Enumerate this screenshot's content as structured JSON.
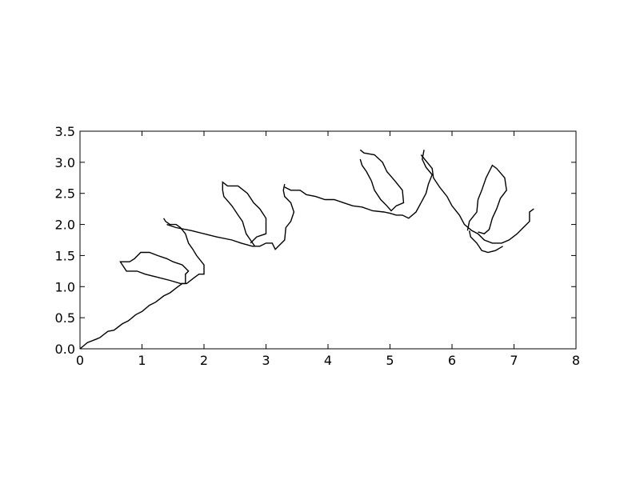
{
  "chart_data": {
    "type": "line",
    "title": "",
    "xlabel": "",
    "ylabel": "",
    "xlim": [
      0,
      8
    ],
    "ylim": [
      0,
      3.5
    ],
    "x_ticks": [
      "0",
      "1",
      "2",
      "3",
      "4",
      "5",
      "6",
      "7",
      "8"
    ],
    "y_ticks": [
      "0.0",
      "0.5",
      "1.0",
      "1.5",
      "2.0",
      "2.5",
      "3.0",
      "3.5"
    ],
    "grid": false,
    "line_color": "#000000",
    "series": [
      {
        "points": [
          [
            0.0,
            0.0
          ],
          [
            0.12,
            0.1
          ],
          [
            0.25,
            0.15
          ],
          [
            0.32,
            0.18
          ],
          [
            0.45,
            0.28
          ],
          [
            0.55,
            0.3
          ],
          [
            0.68,
            0.4
          ],
          [
            0.78,
            0.45
          ],
          [
            0.9,
            0.55
          ],
          [
            1.0,
            0.6
          ],
          [
            1.12,
            0.7
          ],
          [
            1.22,
            0.75
          ],
          [
            1.35,
            0.85
          ],
          [
            1.45,
            0.9
          ],
          [
            1.58,
            1.0
          ],
          [
            1.65,
            1.05
          ],
          [
            1.72,
            1.05
          ],
          [
            1.85,
            1.15
          ],
          [
            1.92,
            1.2
          ],
          [
            2.0,
            1.2
          ],
          [
            2.0,
            1.35
          ],
          [
            1.88,
            1.5
          ],
          [
            1.82,
            1.6
          ],
          [
            1.75,
            1.7
          ],
          [
            1.7,
            1.85
          ],
          [
            1.62,
            1.95
          ],
          [
            1.55,
            2.0
          ],
          [
            1.45,
            2.0
          ],
          [
            1.38,
            2.05
          ],
          [
            1.35,
            2.1
          ]
        ]
      },
      {
        "points": [
          [
            1.7,
            1.05
          ],
          [
            1.7,
            1.2
          ],
          [
            1.75,
            1.25
          ],
          [
            1.65,
            1.35
          ],
          [
            1.5,
            1.4
          ],
          [
            1.4,
            1.45
          ],
          [
            1.25,
            1.5
          ],
          [
            1.12,
            1.55
          ],
          [
            0.98,
            1.55
          ],
          [
            0.88,
            1.45
          ],
          [
            0.8,
            1.4
          ],
          [
            0.65,
            1.4
          ],
          [
            0.75,
            1.25
          ],
          [
            0.92,
            1.25
          ],
          [
            1.05,
            1.2
          ],
          [
            1.25,
            1.15
          ],
          [
            1.45,
            1.1
          ],
          [
            1.62,
            1.05
          ],
          [
            1.72,
            1.05
          ]
        ]
      },
      {
        "points": [
          [
            1.4,
            2.0
          ],
          [
            1.55,
            1.95
          ],
          [
            1.8,
            1.9
          ],
          [
            2.0,
            1.85
          ],
          [
            2.2,
            1.8
          ],
          [
            2.45,
            1.75
          ],
          [
            2.6,
            1.7
          ],
          [
            2.78,
            1.65
          ],
          [
            2.9,
            1.65
          ],
          [
            3.0,
            1.7
          ],
          [
            3.1,
            1.7
          ],
          [
            3.15,
            1.6
          ],
          [
            3.2,
            1.65
          ],
          [
            3.3,
            1.75
          ],
          [
            3.32,
            1.95
          ],
          [
            3.4,
            2.05
          ],
          [
            3.45,
            2.2
          ],
          [
            3.4,
            2.35
          ],
          [
            3.3,
            2.45
          ],
          [
            3.28,
            2.55
          ],
          [
            3.3,
            2.65
          ]
        ]
      },
      {
        "points": [
          [
            2.82,
            1.65
          ],
          [
            2.75,
            1.75
          ],
          [
            2.68,
            1.85
          ],
          [
            2.62,
            2.05
          ],
          [
            2.55,
            2.15
          ],
          [
            2.45,
            2.3
          ],
          [
            2.32,
            2.45
          ],
          [
            2.3,
            2.55
          ],
          [
            2.3,
            2.68
          ],
          [
            2.38,
            2.62
          ],
          [
            2.55,
            2.62
          ],
          [
            2.7,
            2.5
          ],
          [
            2.8,
            2.35
          ],
          [
            2.9,
            2.25
          ],
          [
            3.0,
            2.1
          ],
          [
            3.0,
            1.85
          ],
          [
            2.85,
            1.8
          ],
          [
            2.75,
            1.7
          ]
        ]
      },
      {
        "points": [
          [
            3.3,
            2.6
          ],
          [
            3.4,
            2.55
          ],
          [
            3.55,
            2.55
          ],
          [
            3.65,
            2.48
          ],
          [
            3.8,
            2.45
          ],
          [
            3.95,
            2.4
          ],
          [
            4.1,
            2.4
          ],
          [
            4.25,
            2.35
          ],
          [
            4.4,
            2.3
          ],
          [
            4.55,
            2.28
          ],
          [
            4.72,
            2.22
          ],
          [
            4.9,
            2.2
          ],
          [
            5.0,
            2.18
          ],
          [
            5.1,
            2.15
          ],
          [
            5.2,
            2.15
          ],
          [
            5.3,
            2.1
          ],
          [
            5.42,
            2.2
          ],
          [
            5.5,
            2.35
          ],
          [
            5.58,
            2.5
          ],
          [
            5.62,
            2.65
          ],
          [
            5.68,
            2.8
          ],
          [
            5.58,
            2.92
          ],
          [
            5.52,
            3.05
          ],
          [
            5.55,
            3.2
          ]
        ]
      },
      {
        "points": [
          [
            4.52,
            3.2
          ],
          [
            4.58,
            3.15
          ],
          [
            4.75,
            3.12
          ],
          [
            4.88,
            3.0
          ],
          [
            4.95,
            2.85
          ],
          [
            5.08,
            2.7
          ],
          [
            5.2,
            2.55
          ],
          [
            5.22,
            2.35
          ],
          [
            5.1,
            2.3
          ],
          [
            5.02,
            2.22
          ],
          [
            4.95,
            2.3
          ],
          [
            4.85,
            2.4
          ],
          [
            4.75,
            2.55
          ],
          [
            4.7,
            2.7
          ],
          [
            4.62,
            2.85
          ],
          [
            4.55,
            2.95
          ],
          [
            4.52,
            3.05
          ]
        ]
      },
      {
        "points": [
          [
            5.5,
            3.12
          ],
          [
            5.6,
            3.0
          ],
          [
            5.68,
            2.9
          ],
          [
            5.7,
            2.75
          ],
          [
            5.8,
            2.6
          ],
          [
            5.92,
            2.45
          ],
          [
            6.0,
            2.3
          ],
          [
            6.12,
            2.15
          ],
          [
            6.2,
            2.0
          ],
          [
            6.32,
            1.9
          ],
          [
            6.42,
            1.85
          ],
          [
            6.52,
            1.75
          ],
          [
            6.65,
            1.7
          ],
          [
            6.8,
            1.7
          ],
          [
            6.92,
            1.75
          ],
          [
            7.05,
            1.85
          ],
          [
            7.15,
            1.95
          ],
          [
            7.25,
            2.05
          ],
          [
            7.25,
            2.2
          ],
          [
            7.32,
            2.25
          ]
        ]
      },
      {
        "points": [
          [
            6.25,
            1.9
          ],
          [
            6.28,
            2.05
          ],
          [
            6.4,
            2.2
          ],
          [
            6.42,
            2.4
          ],
          [
            6.48,
            2.55
          ],
          [
            6.55,
            2.75
          ],
          [
            6.65,
            2.95
          ],
          [
            6.72,
            2.9
          ],
          [
            6.85,
            2.75
          ],
          [
            6.88,
            2.55
          ],
          [
            6.78,
            2.42
          ],
          [
            6.72,
            2.25
          ],
          [
            6.65,
            2.1
          ],
          [
            6.6,
            1.92
          ],
          [
            6.52,
            1.85
          ],
          [
            6.42,
            1.88
          ]
        ]
      },
      {
        "points": [
          [
            6.28,
            1.9
          ],
          [
            6.3,
            1.8
          ],
          [
            6.4,
            1.7
          ],
          [
            6.48,
            1.58
          ],
          [
            6.58,
            1.55
          ],
          [
            6.7,
            1.58
          ],
          [
            6.82,
            1.65
          ]
        ]
      }
    ]
  }
}
